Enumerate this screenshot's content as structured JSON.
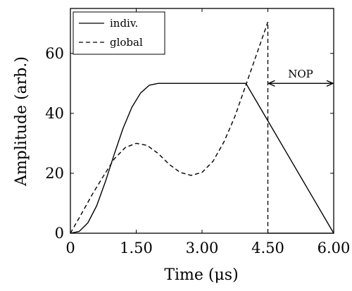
{
  "chart_data": {
    "type": "line",
    "xlabel": "Time (μs)",
    "ylabel": "Amplitude (arb.)",
    "xlim": [
      0,
      6.0
    ],
    "ylim": [
      0,
      75
    ],
    "x_ticks": [
      0,
      1.5,
      3.0,
      4.5,
      6.0
    ],
    "x_tick_labels": [
      "0",
      "1.50",
      "3.00",
      "4.50",
      "6.00"
    ],
    "y_ticks": [
      0,
      20,
      40,
      60
    ],
    "y_tick_labels": [
      "0",
      "20",
      "40",
      "60"
    ],
    "legend_position": "top-left",
    "series": [
      {
        "name": "indiv.",
        "style": "solid",
        "color": "#000000",
        "x": [
          0,
          0.2,
          0.4,
          0.6,
          0.8,
          1.0,
          1.2,
          1.4,
          1.6,
          1.8,
          2.0,
          2.5,
          3.0,
          3.5,
          4.0,
          4.5,
          5.0,
          5.5,
          6.0
        ],
        "y": [
          0,
          0.6,
          3.5,
          9.2,
          17.3,
          26.4,
          35.0,
          42.0,
          46.8,
          49.4,
          50,
          50,
          50,
          50,
          50,
          37.5,
          25,
          12.5,
          0
        ]
      },
      {
        "name": "global",
        "style": "dashed",
        "color": "#000000",
        "x": [
          0,
          0.25,
          0.5,
          0.75,
          1.0,
          1.25,
          1.5,
          1.75,
          2.0,
          2.25,
          2.5,
          2.75,
          3.0,
          3.25,
          3.5,
          3.75,
          4.0,
          4.25,
          4.5
        ],
        "y": [
          0,
          6.4,
          13.0,
          19.0,
          24.8,
          28.6,
          30.0,
          29.3,
          26.6,
          23.0,
          20.3,
          19.3,
          20.3,
          24.0,
          30.5,
          39.0,
          49.5,
          60.0,
          70.5
        ]
      }
    ],
    "annotations": [
      {
        "text": "NOP",
        "from_x": 4.5,
        "to_x": 6.0,
        "at_y": 50,
        "type": "double-arrow"
      },
      {
        "type": "vertical-dashed-line",
        "x": 4.5,
        "from_y": 0,
        "to_y": 70.5
      },
      {
        "type": "horizontal-line",
        "y": 0,
        "from_x": 4.5,
        "to_x": 6.0
      }
    ]
  }
}
